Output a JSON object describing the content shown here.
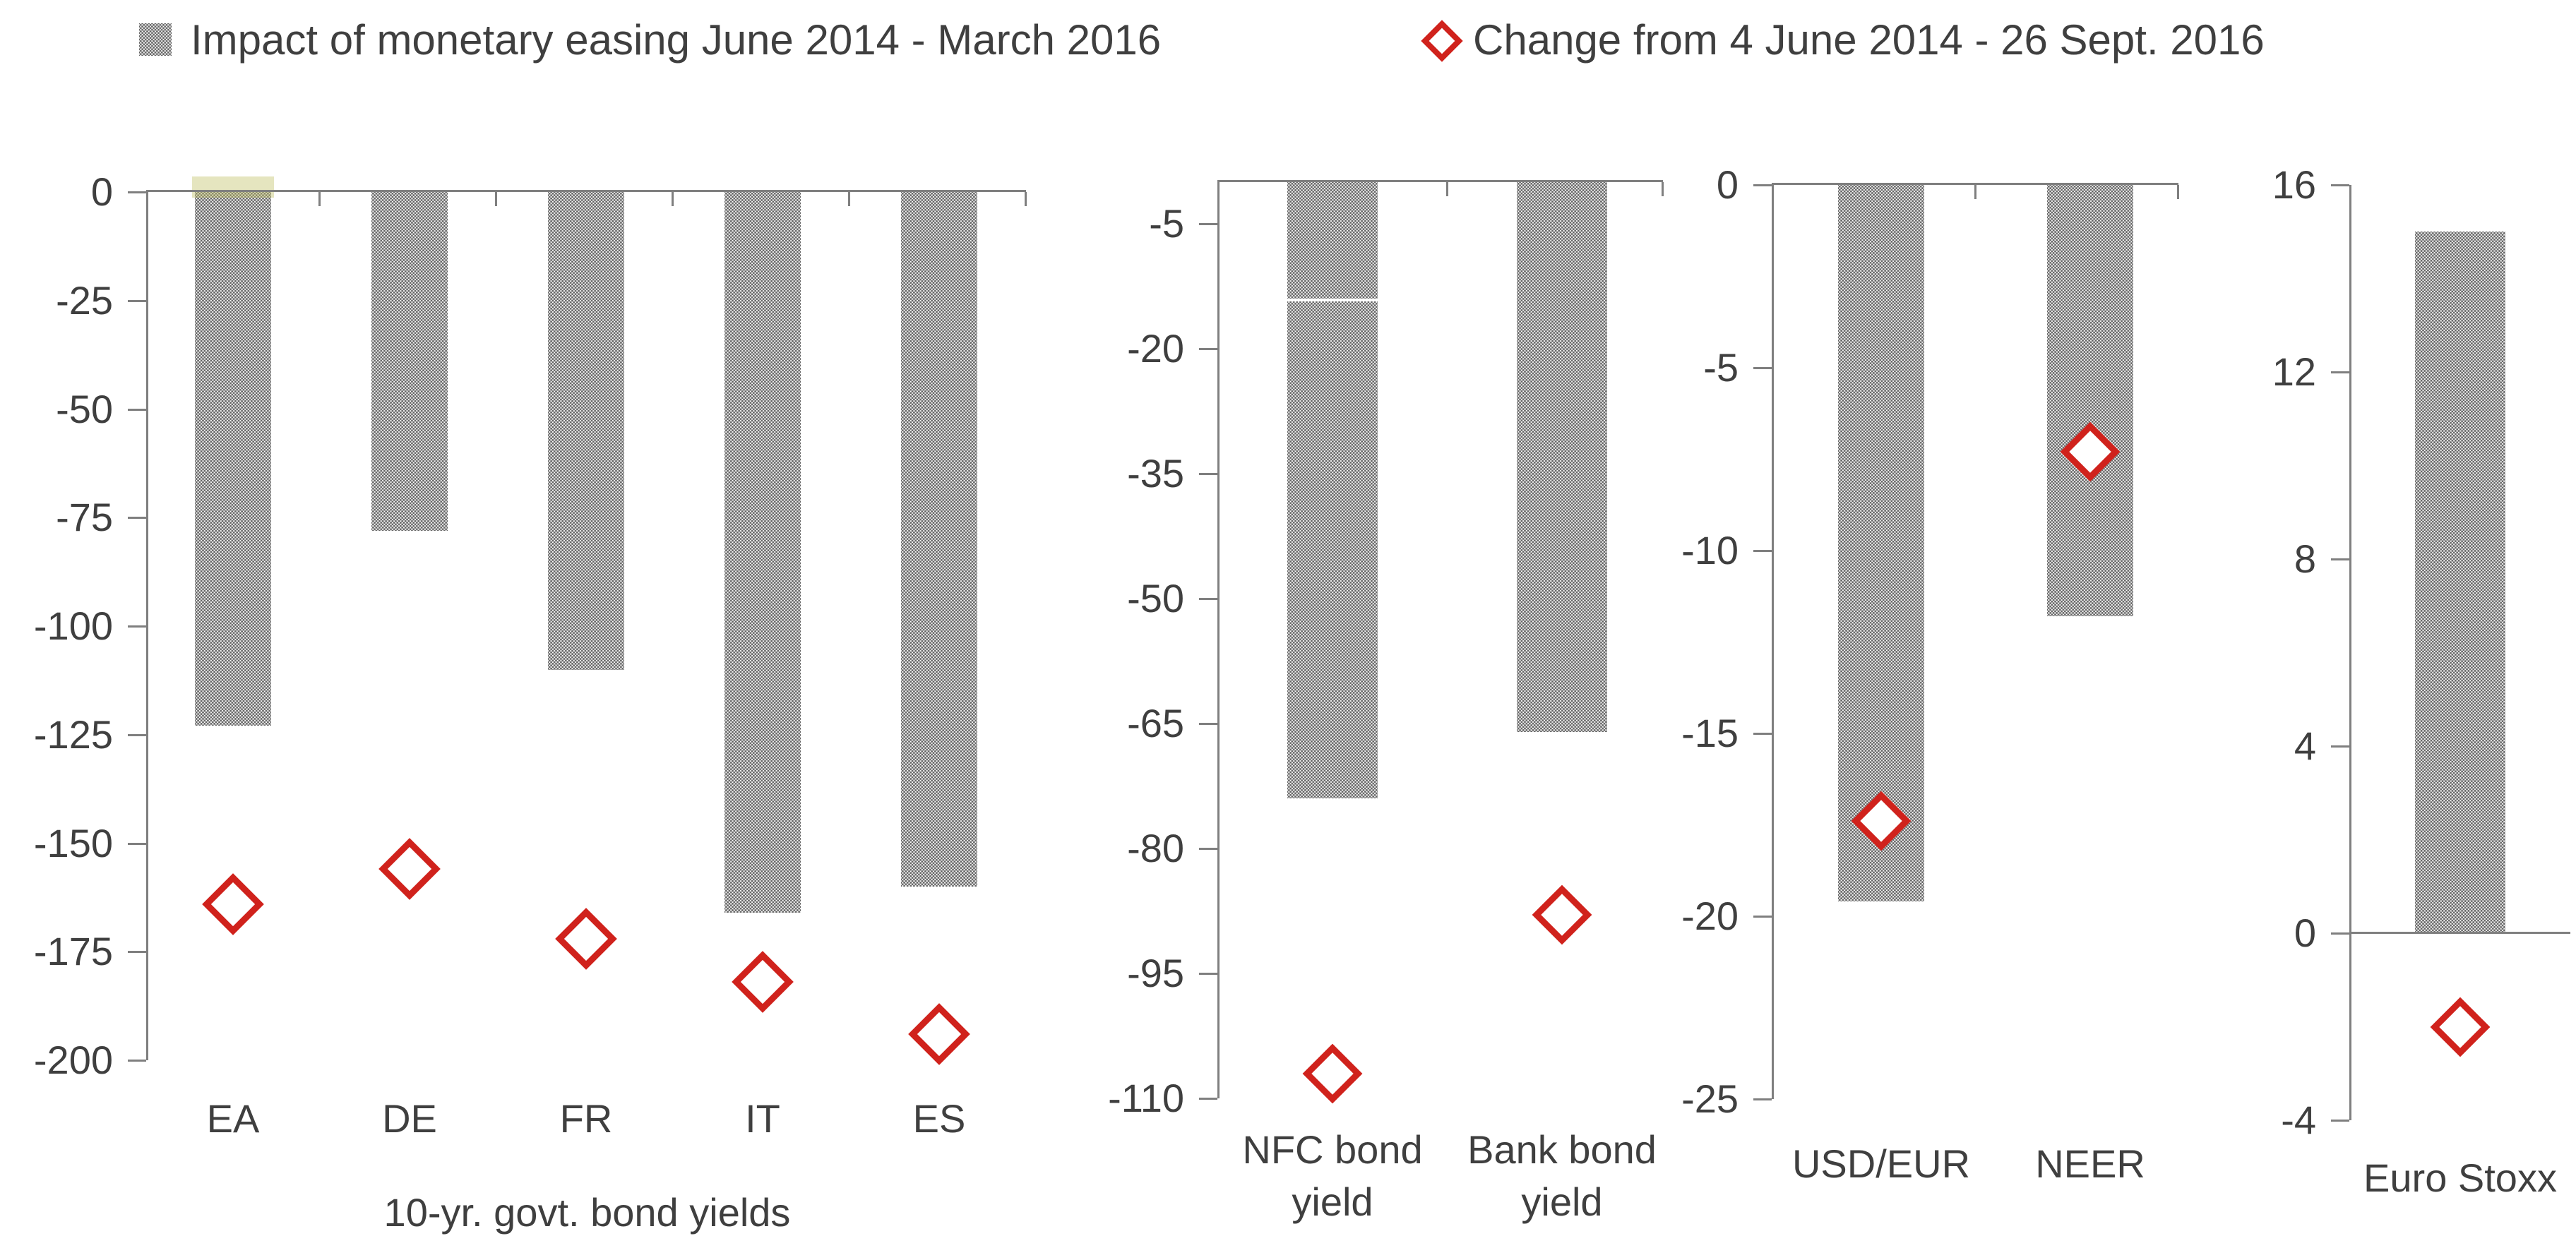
{
  "legend": {
    "items": [
      {
        "marker": "hatched-square",
        "label": "Impact of monetary easing June 2014 - March 2016"
      },
      {
        "marker": "red-diamond-outline",
        "label": "Change from 4 June 2014 - 26 Sept. 2016"
      }
    ]
  },
  "colors": {
    "bar_halftone_dot": "#646464",
    "diamond_red": "#d0221c",
    "axis_gray": "#7f7f7f",
    "text_gray": "#3f3f3f",
    "background": "#ffffff"
  },
  "chart_data": [
    {
      "type": "bar",
      "panel": "10-yr-govt-bond-yields",
      "categories": [
        "EA",
        "DE",
        "FR",
        "IT",
        "ES"
      ],
      "category_lines": [
        [
          "EA"
        ],
        [
          "DE"
        ],
        [
          "FR"
        ],
        [
          "IT"
        ],
        [
          "ES"
        ]
      ],
      "series": [
        {
          "name": "Impact of monetary easing June 2014 - March 2016",
          "type": "bar",
          "values": [
            -123,
            -78,
            -110,
            -166,
            -160
          ]
        },
        {
          "name": "Change from 4 June 2014 - 26 Sept. 2016",
          "type": "scatter",
          "marker": "diamond",
          "values": [
            -164,
            -156,
            -172,
            -182,
            -194
          ]
        }
      ],
      "xlabel": "10-yr. govt. bond yields",
      "ylim": [
        -200,
        0
      ],
      "yticks": [
        0,
        -25,
        -50,
        -75,
        -100,
        -125,
        -150,
        -175,
        -200
      ],
      "grid": false,
      "legend_position": "top",
      "annotations": [
        {
          "type": "tint",
          "category": "EA",
          "note": "faint olive smudge above EA bar top"
        }
      ]
    },
    {
      "type": "bar",
      "panel": "bond-yields",
      "categories": [
        "NFC bond yield",
        "Bank bond yield"
      ],
      "category_lines": [
        [
          "NFC bond",
          "yield"
        ],
        [
          "Bank bond",
          "yield"
        ]
      ],
      "series": [
        {
          "name": "Impact of monetary easing June 2014 - March 2016",
          "type": "bar",
          "values": [
            -74,
            -66
          ]
        },
        {
          "name": "Change from 4 June 2014 - 26 Sept. 2016",
          "type": "scatter",
          "marker": "diamond",
          "values": [
            -107,
            -88
          ]
        }
      ],
      "xlabel": "",
      "ylim": [
        -110,
        0
      ],
      "yticks": [
        -5,
        -20,
        -35,
        -50,
        -65,
        -80,
        -95,
        -110
      ],
      "grid": false,
      "annotations": [
        {
          "type": "white-line",
          "category": "NFC bond yield",
          "value": -14
        }
      ]
    },
    {
      "type": "bar",
      "panel": "exchange-rates",
      "categories": [
        "USD/EUR",
        "NEER"
      ],
      "category_lines": [
        [
          "USD/EUR"
        ],
        [
          "NEER"
        ]
      ],
      "series": [
        {
          "name": "Impact of monetary easing June 2014 - March 2016",
          "type": "bar",
          "values": [
            -19.6,
            -11.8
          ]
        },
        {
          "name": "Change from 4 June 2014 - 26 Sept. 2016",
          "type": "scatter",
          "marker": "diamond",
          "values": [
            -17.4,
            -7.3
          ]
        }
      ],
      "xlabel": "",
      "ylim": [
        -25,
        0
      ],
      "yticks": [
        0,
        -5,
        -10,
        -15,
        -20,
        -25
      ],
      "grid": false,
      "annotations": []
    },
    {
      "type": "bar",
      "panel": "equities",
      "categories": [
        "Euro Stoxx"
      ],
      "category_lines": [
        [
          "Euro Stoxx"
        ]
      ],
      "series": [
        {
          "name": "Impact of monetary easing June 2014 - March 2016",
          "type": "bar",
          "values": [
            15
          ]
        },
        {
          "name": "Change from 4 June 2014 - 26 Sept. 2016",
          "type": "scatter",
          "marker": "diamond",
          "values": [
            -2
          ]
        }
      ],
      "xlabel": "",
      "ylim": [
        -4,
        16
      ],
      "yticks": [
        16,
        12,
        8,
        4,
        0,
        -4
      ],
      "zero_line": true,
      "grid": false,
      "annotations": []
    }
  ]
}
